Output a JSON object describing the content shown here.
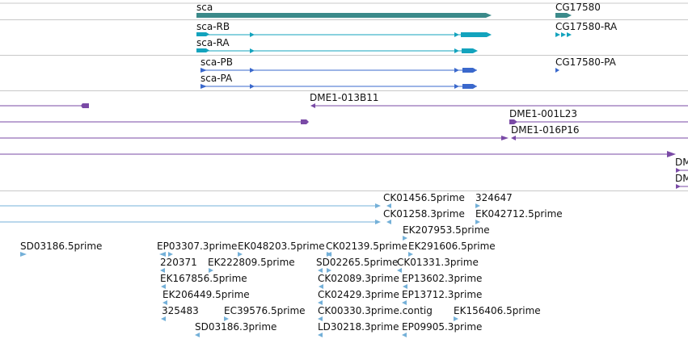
{
  "colors": {
    "gene": "#3b8a8a",
    "transcript": "#13a3bd",
    "protein": "#3a68cc",
    "clone": "#7a4aa6",
    "est": "#74b0d8",
    "divider": "#c8c8c8"
  },
  "gene_track": {
    "genes": [
      "sca",
      "CG17580"
    ]
  },
  "transcript_track": {
    "transcripts": [
      "sca-RB",
      "sca-RA",
      "CG17580-RA"
    ]
  },
  "protein_track": {
    "proteins": [
      "sca-PB",
      "sca-PA",
      "CG17580-PA"
    ]
  },
  "clone_track": {
    "clones": [
      "DME1-013B11",
      "DME1-001L23",
      "DME1-016P16",
      "DM",
      "DM"
    ]
  },
  "est_track": {
    "ests": [
      "CK01456.5prime",
      "324647",
      "CK01258.3prime",
      "EK042712.5prime",
      "EK207953.5prime",
      "SD03186.5prime",
      "EP03307.3prime",
      "EK048203.5prime",
      "CK02139.5prime",
      "EK291606.5prime",
      "220371",
      "EK222809.5prime",
      "SD02265.5prime",
      "CK01331.3prime",
      "EK167856.5prime",
      "CK02089.3prime",
      "EP13602.3prime",
      "EK206449.5prime",
      "CK02429.3prime",
      "EP13712.3prime",
      "325483",
      "EC39576.5prime",
      "CK00330.3prime.contig",
      "EK156406.5prime",
      "SD03186.3prime",
      "LD30218.3prime",
      "EP09905.3prime"
    ]
  }
}
